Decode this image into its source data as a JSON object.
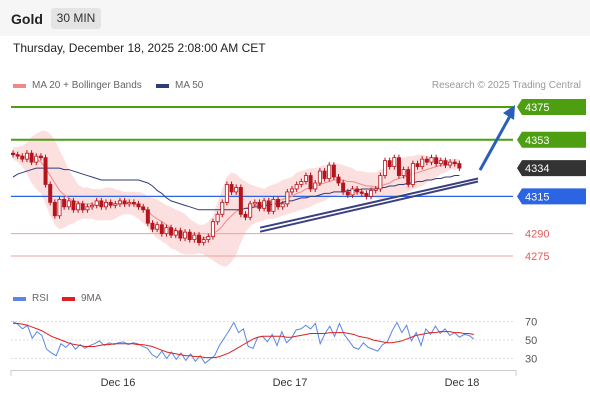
{
  "header": {
    "symbol": "Gold",
    "timeframe": "30 MIN"
  },
  "datetime": "Thursday, December 18, 2025 2:08:00 AM CET",
  "legend": {
    "ma_bb": "MA 20 + Bollinger Bands",
    "ma50": "MA 50",
    "rsi": "RSI",
    "ma9": "9MA"
  },
  "credit": "Research © 2025 Trading Central",
  "colors": {
    "resistance": "#4d9e10",
    "support": "#2d64e3",
    "pivot": "#333333",
    "minor": "#e55b5b",
    "candle": "#b5141d",
    "bb_fill": "#fbd9d9",
    "ma50": "#2f3d77",
    "rsi": "#5b86e5",
    "ma9": "#e02020",
    "arrow": "#2a5fb8"
  },
  "chart_data": [
    {
      "type": "line",
      "title": "",
      "price_levels": [
        {
          "value": 4375,
          "label": "4375",
          "kind": "resistance"
        },
        {
          "value": 4353,
          "label": "4353",
          "kind": "resistance"
        },
        {
          "value": 4334,
          "label": "4334",
          "kind": "pivot"
        },
        {
          "value": 4315,
          "label": "4315",
          "kind": "support"
        },
        {
          "value": 4290,
          "label": "4290",
          "kind": "minor"
        },
        {
          "value": 4275,
          "label": "4275",
          "kind": "minor"
        }
      ],
      "x_ticks": [
        {
          "label": "Dec 16",
          "bar": 21
        },
        {
          "label": "Dec 17",
          "bar": 56
        },
        {
          "label": "Dec 18",
          "bar": 90
        }
      ],
      "price_close": [
        4343,
        4342,
        4340,
        4344,
        4338,
        4342,
        4341,
        4323,
        4311,
        4302,
        4313,
        4308,
        4312,
        4306,
        4310,
        4306,
        4308,
        4309,
        4312,
        4308,
        4311,
        4309,
        4310,
        4312,
        4310,
        4311,
        4310,
        4308,
        4306,
        4297,
        4293,
        4296,
        4290,
        4294,
        4289,
        4292,
        4287,
        4291,
        4286,
        4289,
        4284,
        4286,
        4288,
        4298,
        4303,
        4311,
        4323,
        4318,
        4321,
        4303,
        4301,
        4310,
        4311,
        4307,
        4312,
        4305,
        4313,
        4308,
        4310,
        4318,
        4320,
        4323,
        4325,
        4329,
        4320,
        4324,
        4332,
        4327,
        4336,
        4328,
        4324,
        4318,
        4316,
        4320,
        4318,
        4317,
        4315,
        4319,
        4320,
        4329,
        4339,
        4335,
        4341,
        4329,
        4333,
        4323,
        4337,
        4335,
        4340,
        4338,
        4341,
        4337,
        4339,
        4336,
        4338,
        4337,
        4334
      ],
      "ma20": [
        4344,
        4343,
        4342,
        4341,
        4340,
        4340,
        4338,
        4334,
        4329,
        4324,
        4319,
        4316,
        4314,
        4312,
        4311,
        4310,
        4310,
        4310,
        4309,
        4309,
        4310,
        4310,
        4310,
        4310,
        4310,
        4310,
        4310,
        4309,
        4307,
        4305,
        4302,
        4300,
        4298,
        4296,
        4294,
        4292,
        4290,
        4289,
        4288,
        4287,
        4287,
        4287,
        4288,
        4290,
        4292,
        4295,
        4299,
        4302,
        4305,
        4306,
        4307,
        4308,
        4309,
        4309,
        4310,
        4310,
        4311,
        4312,
        4313,
        4314,
        4315,
        4317,
        4318,
        4320,
        4321,
        4322,
        4323,
        4324,
        4325,
        4326,
        4326,
        4326,
        4325,
        4325,
        4324,
        4323,
        4322,
        4322,
        4321,
        4322,
        4323,
        4324,
        4326,
        4327,
        4328,
        4329,
        4330,
        4331,
        4332,
        4333,
        4334,
        4335,
        4336,
        4336,
        4337,
        4337,
        4337
      ],
      "bb_upper": [
        4348,
        4348,
        4349,
        4351,
        4355,
        4357,
        4359,
        4359,
        4357,
        4353,
        4346,
        4340,
        4333,
        4328,
        4323,
        4321,
        4321,
        4320,
        4320,
        4320,
        4321,
        4321,
        4320,
        4319,
        4318,
        4318,
        4318,
        4318,
        4317,
        4315,
        4314,
        4313,
        4311,
        4309,
        4308,
        4306,
        4305,
        4303,
        4300,
        4298,
        4296,
        4296,
        4298,
        4302,
        4311,
        4320,
        4328,
        4331,
        4330,
        4327,
        4325,
        4323,
        4322,
        4321,
        4320,
        4322,
        4323,
        4324,
        4326,
        4327,
        4328,
        4331,
        4332,
        4333,
        4334,
        4334,
        4335,
        4336,
        4336,
        4337,
        4337,
        4336,
        4335,
        4334,
        4332,
        4332,
        4331,
        4331,
        4331,
        4333,
        4334,
        4336,
        4338,
        4340,
        4341,
        4342,
        4342,
        4343,
        4343,
        4342,
        4342,
        4341,
        4341,
        4340,
        4340,
        4340,
        4340
      ],
      "bb_lower": [
        4340,
        4338,
        4335,
        4330,
        4324,
        4320,
        4317,
        4310,
        4302,
        4296,
        4293,
        4294,
        4296,
        4297,
        4299,
        4300,
        4300,
        4300,
        4299,
        4299,
        4299,
        4299,
        4300,
        4302,
        4303,
        4303,
        4302,
        4300,
        4297,
        4294,
        4290,
        4287,
        4285,
        4283,
        4280,
        4279,
        4277,
        4276,
        4276,
        4276,
        4277,
        4276,
        4274,
        4272,
        4270,
        4268,
        4268,
        4271,
        4276,
        4284,
        4291,
        4295,
        4297,
        4298,
        4299,
        4300,
        4300,
        4301,
        4302,
        4303,
        4304,
        4305,
        4306,
        4307,
        4308,
        4310,
        4311,
        4312,
        4314,
        4315,
        4316,
        4316,
        4316,
        4316,
        4316,
        4315,
        4315,
        4314,
        4314,
        4313,
        4313,
        4314,
        4315,
        4316,
        4317,
        4318,
        4320,
        4321,
        4322,
        4324,
        4326,
        4328,
        4330,
        4331,
        4333,
        4333,
        4334
      ],
      "ma50": [
        4328,
        4330,
        4331,
        4332,
        4333,
        4334,
        4334,
        4334,
        4334,
        4334,
        4334,
        4333,
        4333,
        4332,
        4331,
        4330,
        4329,
        4328,
        4327,
        4326,
        4326,
        4326,
        4326,
        4326,
        4326,
        4326,
        4326,
        4326,
        4325,
        4324,
        4322,
        4319,
        4317,
        4314,
        4312,
        4311,
        4310,
        4309,
        4308,
        4307,
        4306,
        4306,
        4306,
        4306,
        4306,
        4306,
        4306,
        4306,
        4306,
        4306,
        4307,
        4307,
        4308,
        4308,
        4309,
        4309,
        4310,
        4310,
        4311,
        4312,
        4312,
        4313,
        4314,
        4314,
        4315,
        4315,
        4316,
        4317,
        4317,
        4318,
        4318,
        4318,
        4319,
        4319,
        4319,
        4320,
        4320,
        4320,
        4320,
        4321,
        4321,
        4322,
        4322,
        4323,
        4323,
        4324,
        4324,
        4325,
        4325,
        4326,
        4326,
        4327,
        4327,
        4328,
        4328,
        4329,
        4329
      ],
      "trendlines": [
        {
          "from": [
            54,
            4294
          ],
          "to": [
            100,
            4327
          ]
        },
        {
          "from": [
            54,
            4294
          ],
          "to": [
            100,
            4325
          ]
        }
      ],
      "projection_arrow": {
        "from": [
          106,
          4334
        ],
        "to": [
          120,
          4375
        ]
      }
    },
    {
      "type": "line",
      "title": "",
      "y_ticks": [
        70,
        50,
        30
      ],
      "series": [
        {
          "name": "RSI",
          "values": [
            70,
            67,
            62,
            66,
            52,
            59,
            55,
            40,
            36,
            33,
            46,
            42,
            47,
            40,
            45,
            41,
            44,
            46,
            49,
            44,
            47,
            45,
            47,
            48,
            45,
            47,
            46,
            43,
            41,
            34,
            31,
            38,
            30,
            37,
            29,
            36,
            28,
            35,
            27,
            33,
            25,
            29,
            33,
            44,
            52,
            60,
            69,
            58,
            62,
            43,
            41,
            53,
            54,
            48,
            56,
            44,
            59,
            47,
            52,
            61,
            62,
            66,
            62,
            68,
            46,
            57,
            65,
            54,
            68,
            56,
            49,
            42,
            40,
            47,
            42,
            40,
            38,
            45,
            48,
            60,
            69,
            58,
            66,
            49,
            58,
            44,
            62,
            56,
            65,
            57,
            62,
            55,
            58,
            53,
            56,
            55,
            51
          ]
        },
        {
          "name": "9MA",
          "values": [
            68,
            68,
            67,
            66,
            64,
            62,
            60,
            57,
            54,
            52,
            50,
            48,
            46,
            45,
            44,
            43,
            43,
            43,
            44,
            45,
            45,
            46,
            46,
            46,
            46,
            46,
            45,
            45,
            44,
            43,
            41,
            39,
            37,
            36,
            35,
            34,
            33,
            33,
            32,
            32,
            31,
            31,
            31,
            32,
            34,
            36,
            39,
            42,
            45,
            48,
            51,
            53,
            54,
            54,
            54,
            54,
            54,
            53,
            53,
            54,
            55,
            56,
            57,
            57,
            57,
            57,
            58,
            58,
            58,
            58,
            57,
            56,
            54,
            53,
            52,
            50,
            49,
            48,
            47,
            47,
            48,
            49,
            51,
            53,
            55,
            56,
            57,
            58,
            58,
            59,
            59,
            59,
            58,
            58,
            57,
            57,
            56
          ]
        }
      ]
    }
  ]
}
